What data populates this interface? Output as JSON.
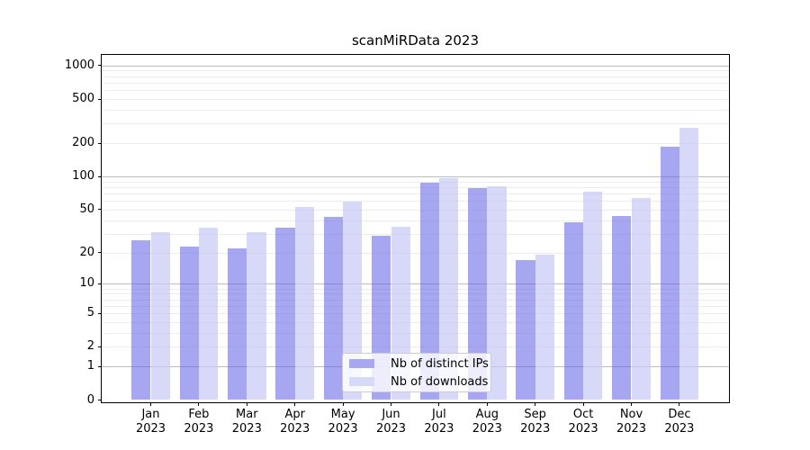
{
  "chart_data": {
    "type": "bar",
    "title": "scanMiRData 2023",
    "categories": [
      "Jan 2023",
      "Feb 2023",
      "Mar 2023",
      "Apr 2023",
      "May 2023",
      "Jun 2023",
      "Jul 2023",
      "Aug 2023",
      "Sep 2023",
      "Oct 2023",
      "Nov 2023",
      "Dec 2023"
    ],
    "series": [
      {
        "name": "Nb of distinct IPs",
        "color": "#a7a7f4",
        "bar_fill": "rgba(100,100,230,0.57)",
        "values": [
          26,
          23,
          22,
          34,
          43,
          29,
          88,
          78,
          17,
          38,
          44,
          185
        ]
      },
      {
        "name": "Nb of downloads",
        "color": "#d8d8f8",
        "bar_fill": "rgba(200,200,245,0.70)",
        "values": [
          31,
          34,
          31,
          53,
          59,
          35,
          97,
          81,
          19,
          73,
          64,
          274
        ]
      }
    ],
    "yscale": "log1p",
    "yticks": [
      0,
      1,
      2,
      5,
      10,
      20,
      50,
      100,
      200,
      500,
      1000
    ],
    "ylim": [
      0,
      1250
    ],
    "xlabel": "",
    "ylabel": "",
    "grid": "horizontal major+minor",
    "grid_colors": {
      "major": "#bdbdbd",
      "minor": "#ececec"
    },
    "legend_position": "lower center"
  }
}
